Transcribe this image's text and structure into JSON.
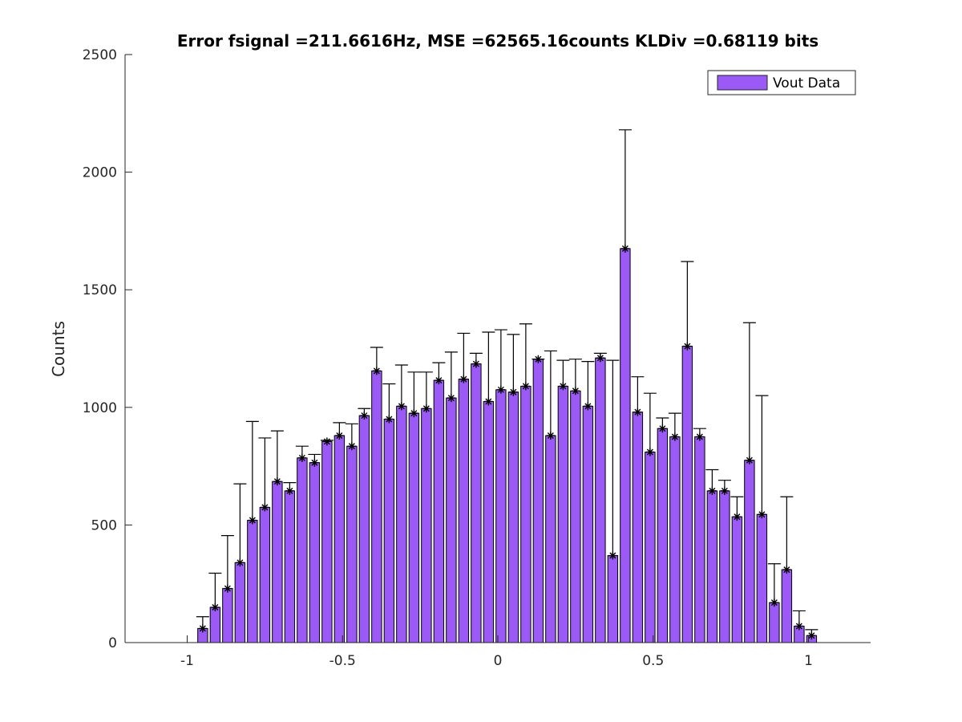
{
  "chart_data": {
    "type": "bar",
    "title": "Error fsignal =211.6616Hz, MSE =62565.16counts KLDiv =0.68119 bits",
    "xlabel": "",
    "ylabel": "Counts",
    "xlim": [
      -1.2,
      1.2
    ],
    "ylim": [
      0,
      2500
    ],
    "xticks": [
      -1,
      -0.5,
      0,
      0.5,
      1
    ],
    "xtick_labels": [
      "-1",
      "-0.5",
      "0",
      "0.5",
      "1"
    ],
    "yticks": [
      0,
      500,
      1000,
      1500,
      2000,
      2500
    ],
    "ytick_labels": [
      "0",
      "500",
      "1000",
      "1500",
      "2000",
      "2500"
    ],
    "grid": false,
    "legend_position": "top-right",
    "series": [
      {
        "name": "Vout Data",
        "color": "#9B59F5",
        "x": [
          -0.95,
          -0.91,
          -0.87,
          -0.83,
          -0.79,
          -0.75,
          -0.71,
          -0.67,
          -0.63,
          -0.59,
          -0.55,
          -0.51,
          -0.47,
          -0.43,
          -0.39,
          -0.35,
          -0.31,
          -0.27,
          -0.23,
          -0.19,
          -0.15,
          -0.11,
          -0.07,
          -0.03,
          0.01,
          0.05,
          0.09,
          0.13,
          0.17,
          0.21,
          0.25,
          0.29,
          0.33,
          0.37,
          0.41,
          0.45,
          0.49,
          0.53,
          0.57,
          0.61,
          0.65,
          0.69,
          0.73,
          0.77,
          0.81,
          0.85,
          0.89,
          0.93,
          0.97,
          1.01
        ],
        "values": [
          60,
          150,
          230,
          340,
          520,
          575,
          685,
          645,
          785,
          765,
          855,
          880,
          835,
          965,
          1155,
          950,
          1005,
          975,
          995,
          1115,
          1040,
          1120,
          1185,
          1025,
          1075,
          1065,
          1090,
          1205,
          880,
          1090,
          1070,
          1005,
          1210,
          370,
          1675,
          980,
          810,
          910,
          875,
          1260,
          875,
          645,
          645,
          535,
          775,
          545,
          170,
          310,
          70,
          30
        ],
        "error_upper": [
          110,
          295,
          455,
          675,
          940,
          870,
          900,
          680,
          835,
          800,
          860,
          935,
          930,
          995,
          1255,
          1100,
          1180,
          1150,
          1150,
          1190,
          1235,
          1315,
          1230,
          1320,
          1330,
          1310,
          1355,
          1205,
          1240,
          1200,
          1205,
          1195,
          1230,
          1200,
          2180,
          1130,
          1060,
          955,
          975,
          1620,
          910,
          735,
          690,
          620,
          1360,
          1050,
          335,
          620,
          135,
          55
        ]
      }
    ]
  }
}
